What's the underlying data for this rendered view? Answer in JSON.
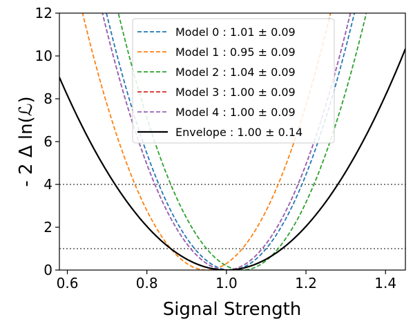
{
  "chart_data": {
    "type": "line",
    "xlabel": "Signal Strength",
    "ylabel": "- 2 Δ ln(ℒ)",
    "xlim": [
      0.58,
      1.45
    ],
    "ylim": [
      0,
      12
    ],
    "x_ticks": [
      "0.6",
      "0.8",
      "1.0",
      "1.2",
      "1.4"
    ],
    "y_ticks": [
      "0",
      "2",
      "4",
      "6",
      "8",
      "10",
      "12"
    ],
    "grid": false,
    "legend_position": "top-center",
    "series": [
      {
        "name": "Model 0 : 1.01 ± 0.09",
        "color": "#1f77b4",
        "style": "dashed",
        "center": 1.01,
        "sigma": 0.09
      },
      {
        "name": "Model 1 : 0.95 ± 0.09",
        "color": "#ff7f0e",
        "style": "dashed",
        "center": 0.95,
        "sigma": 0.09
      },
      {
        "name": "Model 2 : 1.04 ± 0.09",
        "color": "#2ca02c",
        "style": "dashed",
        "center": 1.04,
        "sigma": 0.09
      },
      {
        "name": "Model 3 : 1.00 ± 0.09",
        "color": "#d62728",
        "style": "dashed",
        "center": 1.0,
        "sigma": 0.09
      },
      {
        "name": "Model 4 : 1.00 ± 0.09",
        "color": "#9467bd",
        "style": "dashed",
        "center": 1.0,
        "sigma": 0.09
      },
      {
        "name": "Envelope : 1.00 ± 0.14",
        "color": "#000000",
        "style": "solid",
        "center": 1.0,
        "sigma": 0.14
      }
    ],
    "reference_lines": [
      {
        "y": 1,
        "color": "#808080",
        "style": "dotted"
      },
      {
        "y": 4,
        "color": "#808080",
        "style": "dotted"
      }
    ]
  }
}
